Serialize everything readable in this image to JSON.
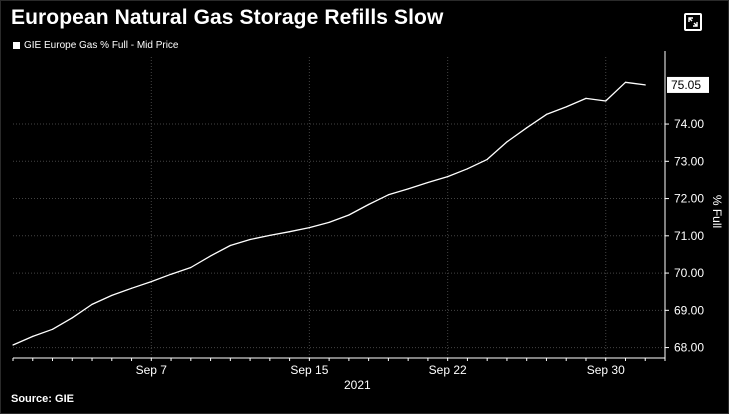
{
  "title": "European Natural Gas Storage Refills Slow",
  "legend_label": "GIE Europe Gas % Full - Mid Price",
  "source": "Source: GIE",
  "icons": {
    "expand": "expand-icon"
  },
  "colors": {
    "background": "#000000",
    "line": "#ffffff",
    "grid": "#444444"
  },
  "chart_data": {
    "type": "line",
    "series": [
      {
        "name": "GIE Europe Gas % Full - Mid Price",
        "x": [
          "2021-08-31",
          "2021-09-01",
          "2021-09-02",
          "2021-09-03",
          "2021-09-04",
          "2021-09-05",
          "2021-09-06",
          "2021-09-07",
          "2021-09-08",
          "2021-09-09",
          "2021-09-10",
          "2021-09-11",
          "2021-09-12",
          "2021-09-13",
          "2021-09-14",
          "2021-09-15",
          "2021-09-16",
          "2021-09-17",
          "2021-09-18",
          "2021-09-19",
          "2021-09-20",
          "2021-09-21",
          "2021-09-22",
          "2021-09-23",
          "2021-09-24",
          "2021-09-25",
          "2021-09-26",
          "2021-09-27",
          "2021-09-28",
          "2021-09-29",
          "2021-09-30",
          "2021-10-01",
          "2021-10-02"
        ],
        "values": [
          68.07,
          68.3,
          68.49,
          68.8,
          69.16,
          69.4,
          69.59,
          69.77,
          69.97,
          70.15,
          70.46,
          70.74,
          70.9,
          71.01,
          71.11,
          71.22,
          71.36,
          71.56,
          71.84,
          72.1,
          72.26,
          72.43,
          72.59,
          72.8,
          73.05,
          73.52,
          73.9,
          74.26,
          74.46,
          74.69,
          74.62,
          75.12,
          75.05
        ]
      }
    ],
    "last_value_label": "75.05",
    "x_ticks": [
      "Sep 7",
      "Sep 15",
      "Sep 22",
      "Sep 30"
    ],
    "x_tick_dates": [
      "2021-09-07",
      "2021-09-15",
      "2021-09-22",
      "2021-09-30"
    ],
    "x_year_label": "2021",
    "x_range": [
      "2021-08-31",
      "2021-10-03"
    ],
    "y_ticks": [
      "68.00",
      "69.00",
      "70.00",
      "71.00",
      "72.00",
      "73.00",
      "74.00"
    ],
    "ylim": [
      67.72,
      75.8
    ],
    "ylabel": "% Full",
    "grid": true,
    "y_axis_position": "right"
  }
}
